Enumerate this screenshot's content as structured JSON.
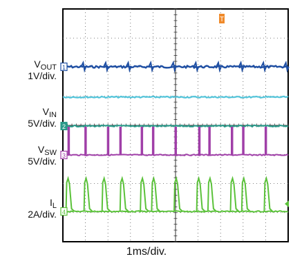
{
  "chart_data": {
    "type": "line",
    "title": "",
    "xlabel": "1ms/div.",
    "grid": true,
    "divisions": {
      "x": 10,
      "y": 8
    },
    "x_range_ms": [
      0,
      10
    ],
    "trigger_marker": "T",
    "channels": [
      {
        "number": "1",
        "name_main": "V",
        "name_sub": "OUT",
        "scale": "1V/div.",
        "color": "#1f4fa3",
        "waveform": "dc-with-spikes"
      },
      {
        "number": "",
        "name_main": "",
        "name_sub": "",
        "scale": "",
        "color": "#4fc3d9",
        "waveform": "flat"
      },
      {
        "number": "2",
        "name_main": "V",
        "name_sub": "IN",
        "scale": "5V/div.",
        "color": "#2a9a8a",
        "waveform": "flat"
      },
      {
        "number": "3",
        "name_main": "V",
        "name_sub": "SW",
        "scale": "5V/div.",
        "color": "#a03fa8",
        "waveform": "pulse",
        "pulse_times_ms": [
          0.25,
          1.0,
          2.0,
          2.55,
          3.5,
          4.0,
          5.0,
          6.05,
          6.5,
          7.5,
          8.0,
          9.0
        ]
      },
      {
        "number": "4",
        "name_main": "I",
        "name_sub": "L",
        "scale": "2A/div.",
        "color": "#5bc23a",
        "waveform": "pulse",
        "pulse_times_ms": [
          0.2,
          1.0,
          1.8,
          2.6,
          3.5,
          4.0,
          5.0,
          6.0,
          6.5,
          7.5,
          8.0,
          9.0
        ]
      }
    ]
  }
}
